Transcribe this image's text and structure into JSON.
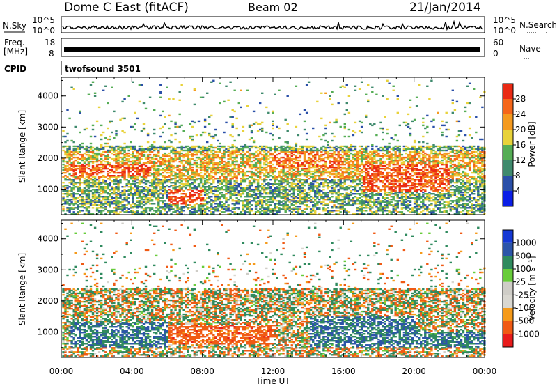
{
  "header": {
    "title": "Dome C East (fitACF)",
    "beam": "Beam 02",
    "date": "21/Jan/2014"
  },
  "top_panels": {
    "nsky": {
      "left_label": "N.Sky",
      "right_label": "N.Search",
      "left_ticks": [
        "10^5",
        "10^0"
      ],
      "right_ticks": [
        "10^5",
        "10^0"
      ]
    },
    "freq": {
      "left_label_line1": "Freq.",
      "left_label_line2": "[MHz]",
      "right_label": "Nave",
      "left_ticks": [
        "18",
        "8"
      ],
      "right_ticks": [
        "60",
        "0"
      ]
    },
    "cpid": {
      "label": "CPID",
      "value": "twofsound 3501"
    }
  },
  "colors": {
    "power_scale": [
      "#0b1ee6",
      "#2a4fa8",
      "#3f8a6d",
      "#55ad55",
      "#e8d23a",
      "#f49a1f",
      "#f5661a",
      "#ea2a14"
    ],
    "velocity_scale": [
      "#e81b1b",
      "#f05a14",
      "#f59a1a",
      "#d9d7d0",
      "#cfcdc7",
      "#68cc3a",
      "#2f8a5e",
      "#2c55a9",
      "#1538d4"
    ]
  },
  "chart_data": [
    {
      "type": "heatmap",
      "title": "",
      "ylabel": "Slant Range [km]",
      "xlabel": "",
      "x_range_hours": [
        0,
        24
      ],
      "ylim": [
        180,
        4600
      ],
      "yticks": [
        "1000",
        "2000",
        "3000",
        "4000"
      ],
      "colorbar": {
        "label": "Power [dB]",
        "ticks": [
          "4",
          "8",
          "12",
          "16",
          "20",
          "24",
          "28"
        ],
        "range": [
          0,
          30
        ]
      },
      "features": [
        {
          "t0": 0,
          "t1": 24,
          "r0": 1300,
          "r1": 2200,
          "level": 19
        },
        {
          "t0": 0.5,
          "t1": 5,
          "r0": 1400,
          "r1": 1800,
          "level": 26
        },
        {
          "t0": 6,
          "t1": 8,
          "r0": 500,
          "r1": 1000,
          "level": 28
        },
        {
          "t0": 12,
          "t1": 16,
          "r0": 1600,
          "r1": 2200,
          "level": 24
        },
        {
          "t0": 17,
          "t1": 22,
          "r0": 900,
          "r1": 1800,
          "level": 26
        }
      ]
    },
    {
      "type": "heatmap",
      "title": "",
      "ylabel": "Slant Range [km]",
      "xlabel": "Time UT",
      "xticks": [
        "00:00",
        "04:00",
        "08:00",
        "12:00",
        "16:00",
        "20:00",
        "00:00"
      ],
      "x_range_hours": [
        0,
        24
      ],
      "ylim": [
        180,
        4600
      ],
      "yticks": [
        "1000",
        "2000",
        "3000",
        "4000"
      ],
      "colorbar": {
        "label": "Velocity [m s⁻¹]",
        "ticks": [
          "1000",
          "500",
          "100",
          "25",
          "-25",
          "-100",
          "-500",
          "-1000"
        ],
        "range": [
          -1000,
          1000
        ]
      },
      "features": [
        {
          "t0": 0,
          "t1": 24,
          "r0": 1700,
          "r1": 2300,
          "level": 0
        },
        {
          "t0": 0.5,
          "t1": 6,
          "r0": 500,
          "r1": 1300,
          "level": 300
        },
        {
          "t0": 6,
          "t1": 12,
          "r0": 600,
          "r1": 1200,
          "level": -300
        },
        {
          "t0": 14,
          "t1": 20,
          "r0": 500,
          "r1": 1500,
          "level": 300
        },
        {
          "t0": 20,
          "t1": 24,
          "r0": 500,
          "r1": 1000,
          "level": 300
        }
      ]
    }
  ]
}
